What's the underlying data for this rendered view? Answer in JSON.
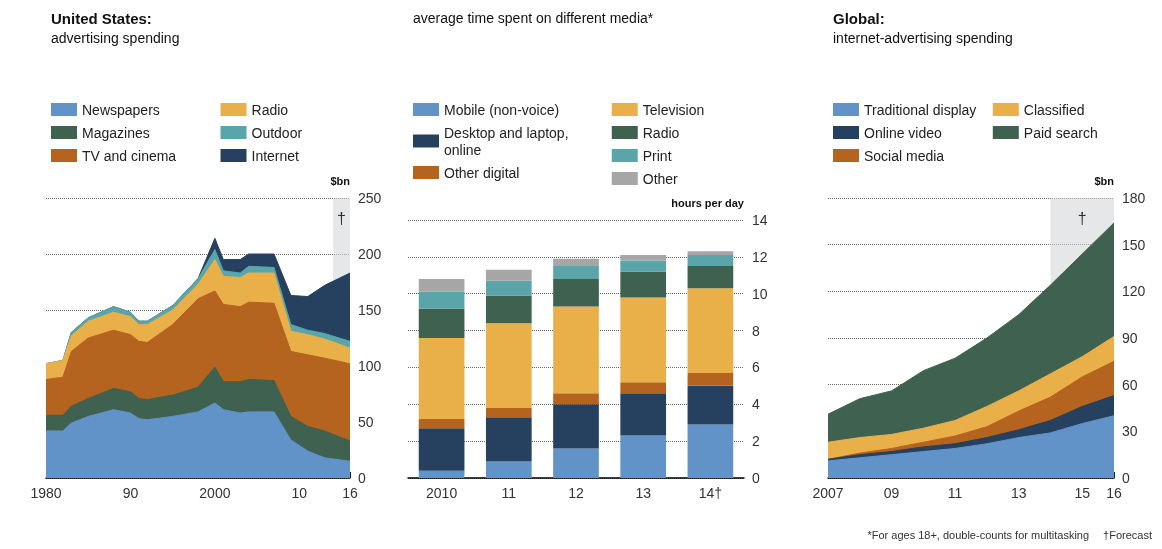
{
  "chart_data": [
    {
      "type": "area",
      "title": "United States:",
      "subtitle": "advertising spending",
      "ylabel": "$bn",
      "stacked": true,
      "legend": "top left",
      "grid": "y",
      "marker": "none",
      "x": [
        1980,
        1982,
        1983,
        1985,
        1988,
        1990,
        1991,
        1992,
        1995,
        1998,
        2000,
        2001,
        2003,
        2004,
        2007,
        2009,
        2011,
        2013,
        2016
      ],
      "series": [
        {
          "name": "Newspapers",
          "color": "#6193c9",
          "values": [
            42,
            42,
            49,
            55,
            61,
            58,
            53,
            52,
            55,
            59,
            67,
            61,
            58,
            59,
            59,
            34,
            24,
            18,
            15
          ]
        },
        {
          "name": "Magazines",
          "color": "#3f6150",
          "values": [
            14,
            14,
            15,
            16,
            19,
            19,
            18,
            18,
            19,
            22,
            32,
            25,
            28,
            29,
            28,
            21,
            22,
            24,
            18
          ]
        },
        {
          "name": "TV and cinema",
          "color": "#b5641f",
          "values": [
            32,
            34,
            49,
            54,
            52,
            51,
            51,
            51,
            63,
            79,
            68,
            69,
            67,
            69,
            69,
            58,
            64,
            65,
            69
          ]
        },
        {
          "name": "Radio",
          "color": "#e9b04a",
          "values": [
            14,
            15,
            14,
            15,
            16,
            16,
            15,
            16,
            13,
            13,
            28,
            25,
            26,
            26,
            27,
            18,
            18,
            17,
            14
          ]
        },
        {
          "name": "Outdoor",
          "color": "#5aa5aa",
          "values": [
            0,
            0,
            3,
            3,
            5,
            4,
            3,
            3,
            4,
            5,
            9,
            5,
            4,
            6,
            5,
            6,
            4,
            5,
            6
          ]
        },
        {
          "name": "Internet",
          "color": "#26405f",
          "values": [
            0,
            0,
            0,
            0,
            0,
            0,
            0,
            0,
            0,
            0,
            10,
            10,
            12,
            11,
            12,
            26,
            30,
            43,
            61
          ]
        }
      ],
      "xlim": [
        1980,
        2016
      ],
      "ylim": [
        0,
        250
      ],
      "yticks": [
        0,
        50,
        100,
        150,
        200,
        250
      ],
      "xticks": [
        1980,
        {
          "value": 1981,
          "label": null
        },
        {
          "value": 1982,
          "label": null
        },
        {
          "value": 1983,
          "label": null
        },
        {
          "value": 1984,
          "label": null
        },
        {
          "value": 1985,
          "label": null
        },
        {
          "value": 1986,
          "label": null
        },
        {
          "value": 1987,
          "label": null
        },
        {
          "value": 1988,
          "label": null
        },
        {
          "value": 1989,
          "label": null
        },
        {
          "value": 1990,
          "label": "90"
        },
        {
          "value": 1991,
          "label": null
        },
        {
          "value": 1992,
          "label": null
        },
        {
          "value": 1993,
          "label": null
        },
        {
          "value": 1994,
          "label": null
        },
        {
          "value": 1995,
          "label": null
        },
        {
          "value": 1996,
          "label": null
        },
        {
          "value": 1997,
          "label": null
        },
        {
          "value": 1998,
          "label": null
        },
        {
          "value": 1999,
          "label": null
        },
        2000,
        {
          "value": 2001,
          "label": null
        },
        {
          "value": 2002,
          "label": null
        },
        {
          "value": 2003,
          "label": null
        },
        {
          "value": 2004,
          "label": null
        },
        {
          "value": 2005,
          "label": null
        },
        {
          "value": 2006,
          "label": null
        },
        {
          "value": 2007,
          "label": null
        },
        {
          "value": 2008,
          "label": null
        },
        {
          "value": 2009,
          "label": null
        },
        {
          "value": 2010,
          "label": "10"
        },
        {
          "value": 2011,
          "label": null
        },
        {
          "value": 2012,
          "label": null
        },
        {
          "value": 2013,
          "label": null
        },
        {
          "value": 2014,
          "label": null
        },
        {
          "value": 2015,
          "label": null
        },
        {
          "value": 2016,
          "label": "16"
        }
      ],
      "bands": [
        {
          "axis": "x",
          "from": 2014,
          "to": 2016,
          "label": "†",
          "color": "#d0d3d6"
        }
      ]
    },
    {
      "type": "bar",
      "title": "average time spent on different media*",
      "ylabel": "hours per day",
      "stacked": true,
      "legend": "top left",
      "grid": "y",
      "categories": [
        "2010",
        "11",
        "12",
        "13",
        "14†"
      ],
      "series": [
        {
          "name": "Mobile (non-voice)",
          "color": "#6193c9",
          "values": [
            0.4,
            0.9,
            1.6,
            2.3,
            2.9
          ]
        },
        {
          "name": "Desktop and laptop, online",
          "color": "#26405f",
          "values": [
            2.3,
            2.4,
            2.4,
            2.3,
            2.1
          ]
        },
        {
          "name": "Other digital",
          "color": "#b5641f",
          "values": [
            0.5,
            0.5,
            0.6,
            0.6,
            0.7
          ]
        },
        {
          "name": "Television",
          "color": "#e9b04a",
          "values": [
            4.4,
            4.6,
            4.7,
            4.6,
            4.6
          ]
        },
        {
          "name": "Radio",
          "color": "#3f6150",
          "values": [
            1.6,
            1.5,
            1.5,
            1.4,
            1.2
          ]
        },
        {
          "name": "Print",
          "color": "#5aa5aa",
          "values": [
            0.9,
            0.8,
            0.7,
            0.6,
            0.6
          ]
        },
        {
          "name": "Other",
          "color": "#a6a6a6",
          "values": [
            0.7,
            0.6,
            0.4,
            0.3,
            0.2
          ]
        }
      ],
      "ylim": [
        0,
        14
      ],
      "yticks": [
        0,
        2,
        4,
        6,
        8,
        10,
        12,
        14
      ]
    },
    {
      "type": "area",
      "title": "Global:",
      "subtitle": "internet-advertising spending",
      "ylabel": "$bn",
      "stacked": true,
      "legend": "top left",
      "grid": "y",
      "marker": "none",
      "x": [
        2007,
        2008,
        2009,
        2010,
        2011,
        2012,
        2013,
        2014,
        2015,
        2016
      ],
      "series": [
        {
          "name": "Traditional display",
          "color": "#6193c9",
          "values": [
            11,
            13,
            15,
            17,
            19,
            22,
            26,
            29,
            35,
            40
          ]
        },
        {
          "name": "Online video",
          "color": "#26405f",
          "values": [
            1,
            2,
            2,
            3,
            3,
            4,
            5,
            8,
            11,
            13
          ]
        },
        {
          "name": "Social media",
          "color": "#b5641f",
          "values": [
            0,
            1,
            2,
            3,
            5,
            7,
            12,
            15,
            19,
            22
          ]
        },
        {
          "name": "Classified",
          "color": "#e9b04a",
          "values": [
            11,
            10,
            9,
            9,
            10,
            13,
            13,
            15,
            13,
            16
          ]
        },
        {
          "name": "Paid search",
          "color": "#3f6150",
          "values": [
            18,
            25,
            28,
            37,
            40,
            44,
            49,
            57,
            66,
            73
          ]
        }
      ],
      "xlim": [
        2007,
        2016
      ],
      "ylim": [
        0,
        180
      ],
      "yticks": [
        0,
        30,
        60,
        90,
        120,
        150,
        180
      ],
      "xticks": [
        2007,
        {
          "value": 2008,
          "label": null
        },
        {
          "value": 2009,
          "label": "09"
        },
        {
          "value": 2010,
          "label": null
        },
        {
          "value": 2011,
          "label": "11"
        },
        {
          "value": 2012,
          "label": null
        },
        {
          "value": 2013,
          "label": "13"
        },
        {
          "value": 2014,
          "label": null
        },
        {
          "value": 2015,
          "label": "15"
        },
        {
          "value": 2016,
          "label": "16"
        }
      ],
      "bands": [
        {
          "axis": "x",
          "from": 2014,
          "to": 2016,
          "label": "†",
          "color": "#d0d3d6"
        }
      ],
      "annotations": [
        "*For ages 18+, double-counts for multitasking",
        "†Forecast"
      ]
    }
  ]
}
